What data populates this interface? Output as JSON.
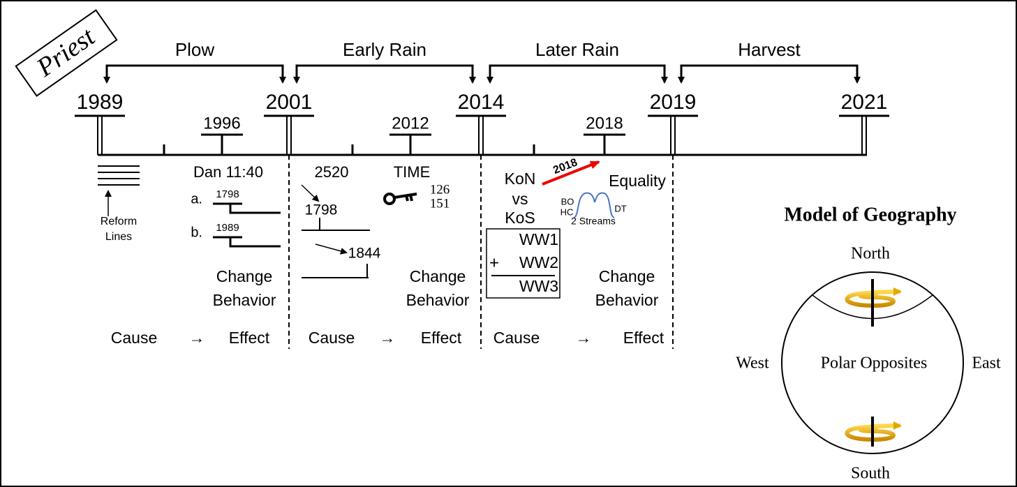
{
  "stamp": "Priest",
  "periods": [
    "Plow",
    "Early Rain",
    "Later Rain",
    "Harvest"
  ],
  "years": [
    "1989",
    "2001",
    "2014",
    "2019",
    "2021"
  ],
  "minor_years": [
    "1996",
    "2012",
    "2018"
  ],
  "section_1": {
    "reform_lines": [
      "Reform",
      "Lines"
    ],
    "title": "Dan 11:40",
    "items": [
      {
        "marker": "a.",
        "year": "1798"
      },
      {
        "marker": "b.",
        "year": "1989"
      }
    ],
    "result": [
      "Change",
      "Behavior"
    ],
    "flow": [
      "Cause",
      "→",
      "Effect"
    ]
  },
  "section_2": {
    "title": "2520",
    "time": "TIME",
    "key_numbers": [
      "126",
      "151"
    ],
    "years": [
      "1798",
      "1844"
    ],
    "result": [
      "Change",
      "Behavior"
    ],
    "flow": [
      "Cause",
      "→",
      "Effect"
    ]
  },
  "section_3": {
    "kings": [
      "KoN",
      "vs",
      "KoS"
    ],
    "arrow_label": "2018",
    "equality": "Equality",
    "streams": {
      "left": [
        "BO",
        "HC"
      ],
      "right": "DT",
      "label": "2 Streams"
    },
    "wars": {
      "rows": [
        "WW1",
        "WW2",
        "WW3"
      ],
      "operator": "+"
    },
    "result": [
      "Change",
      "Behavior"
    ],
    "flow": [
      "Cause",
      "→",
      "Effect"
    ]
  },
  "model": {
    "title": "Model of Geography",
    "north": "North",
    "south": "South",
    "west": "West",
    "east": "East",
    "center": "Polar Opposites"
  }
}
